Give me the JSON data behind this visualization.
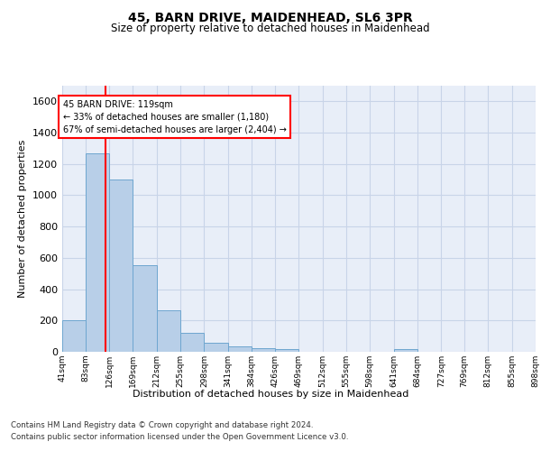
{
  "title": "45, BARN DRIVE, MAIDENHEAD, SL6 3PR",
  "subtitle": "Size of property relative to detached houses in Maidenhead",
  "xlabel": "Distribution of detached houses by size in Maidenhead",
  "ylabel": "Number of detached properties",
  "footer_line1": "Contains HM Land Registry data © Crown copyright and database right 2024.",
  "footer_line2": "Contains public sector information licensed under the Open Government Licence v3.0.",
  "bar_edges": [
    41,
    83,
    126,
    169,
    212,
    255,
    298,
    341,
    384,
    426,
    469,
    512,
    555,
    598,
    641,
    684,
    727,
    769,
    812,
    855,
    898
  ],
  "bar_heights": [
    200,
    1270,
    1100,
    555,
    265,
    120,
    60,
    35,
    25,
    18,
    0,
    0,
    0,
    0,
    20,
    0,
    0,
    0,
    0,
    0
  ],
  "bar_color": "#b8cfe8",
  "bar_edge_color": "#6ea6d0",
  "grid_color": "#c8d4e8",
  "bg_color": "#e8eef8",
  "red_line_x": 119,
  "annotation_text_line1": "45 BARN DRIVE: 119sqm",
  "annotation_text_line2": "← 33% of detached houses are smaller (1,180)",
  "annotation_text_line3": "67% of semi-detached houses are larger (2,404) →",
  "ylim": [
    0,
    1700
  ],
  "yticks": [
    0,
    200,
    400,
    600,
    800,
    1000,
    1200,
    1400,
    1600
  ],
  "tick_labels": [
    "41sqm",
    "83sqm",
    "126sqm",
    "169sqm",
    "212sqm",
    "255sqm",
    "298sqm",
    "341sqm",
    "384sqm",
    "426sqm",
    "469sqm",
    "512sqm",
    "555sqm",
    "598sqm",
    "641sqm",
    "684sqm",
    "727sqm",
    "769sqm",
    "812sqm",
    "855sqm",
    "898sqm"
  ]
}
